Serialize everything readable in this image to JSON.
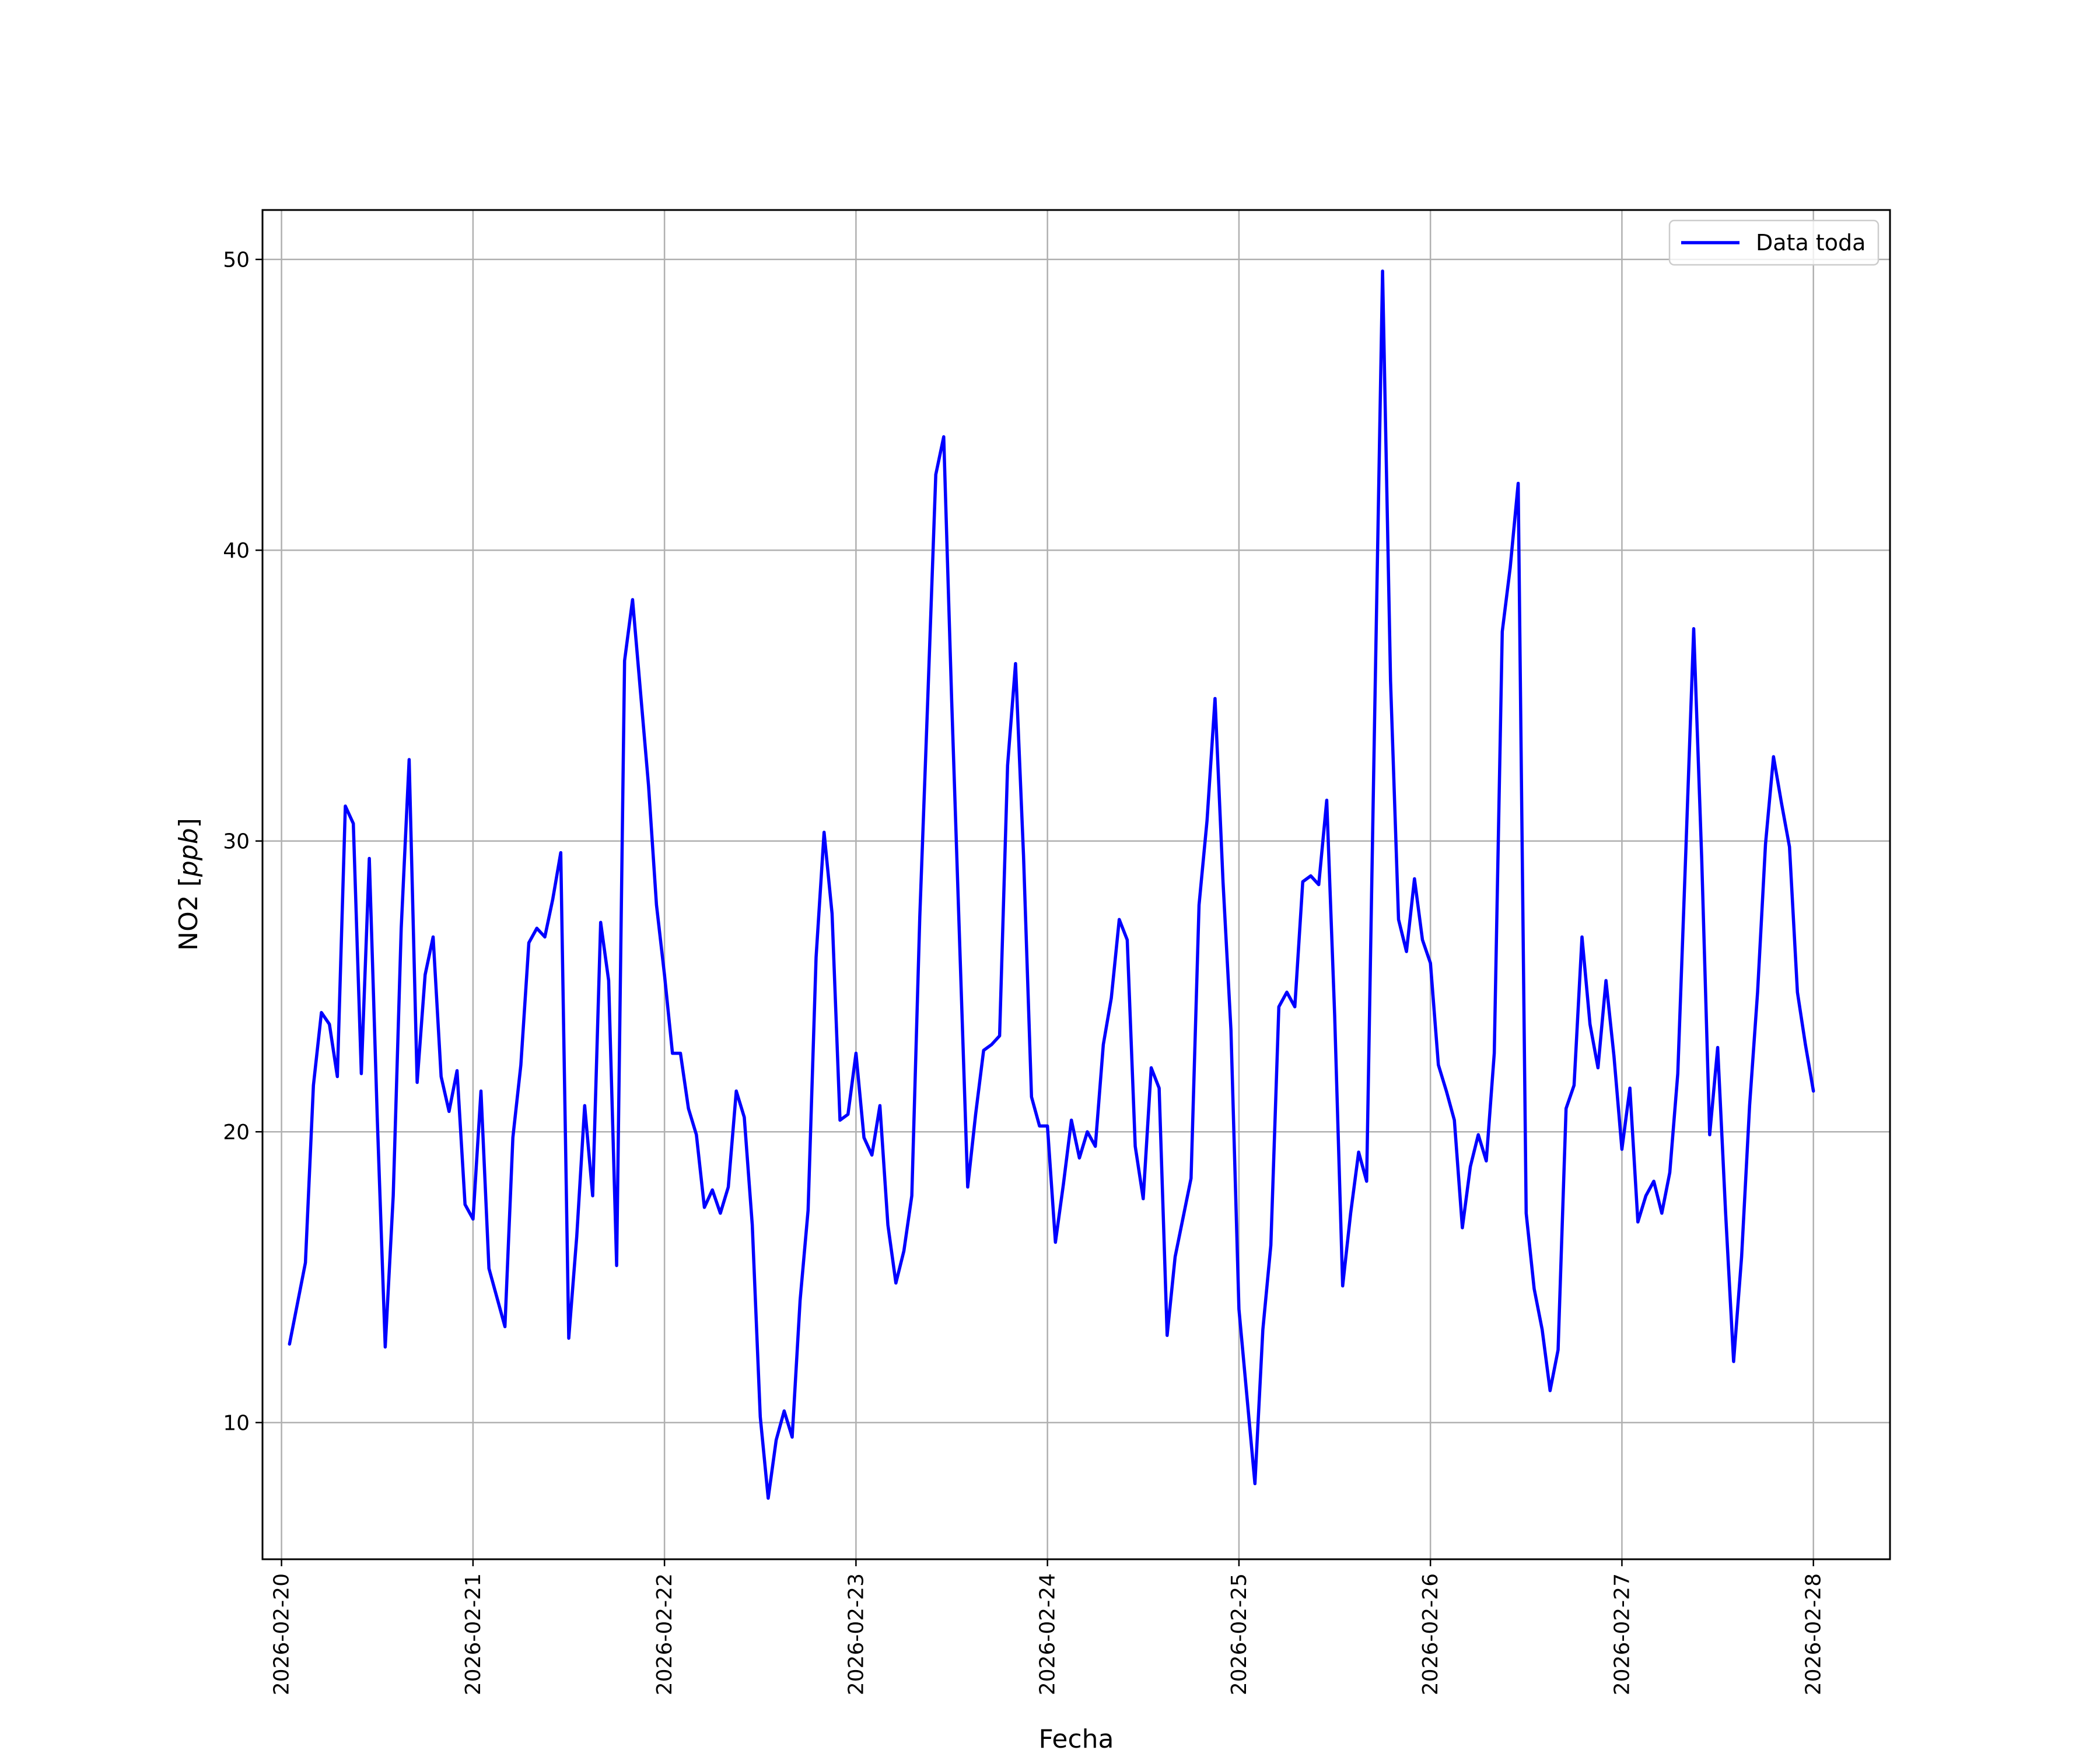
{
  "chart_data": {
    "type": "line",
    "xlabel": "Fecha",
    "ylabel_main": "NO2 [",
    "ylabel_unit": "ppb",
    "ylabel_end": "]",
    "xlim": [
      "2026-02-19T21:37:00",
      "2026-02-28T09:36:00"
    ],
    "ylim": [
      5.3,
      51.7
    ],
    "x_ticks": [
      "2026-02-20",
      "2026-02-21",
      "2026-02-22",
      "2026-02-23",
      "2026-02-24",
      "2026-02-25",
      "2026-02-26",
      "2026-02-27",
      "2026-02-28"
    ],
    "y_ticks": [
      10,
      20,
      30,
      40,
      50
    ],
    "grid": true,
    "legend_position": "top-right",
    "series": [
      {
        "name": "Data toda",
        "color": "#0000ff",
        "x": [
          "2026-02-20T01:00",
          "2026-02-20T03:00",
          "2026-02-20T04:00",
          "2026-02-20T05:00",
          "2026-02-20T06:00",
          "2026-02-20T07:00",
          "2026-02-20T08:00",
          "2026-02-20T09:00",
          "2026-02-20T10:00",
          "2026-02-20T11:00",
          "2026-02-20T12:00",
          "2026-02-20T13:00",
          "2026-02-20T14:00",
          "2026-02-20T15:00",
          "2026-02-20T16:00",
          "2026-02-20T17:00",
          "2026-02-20T18:00",
          "2026-02-20T19:00",
          "2026-02-20T20:00",
          "2026-02-20T21:00",
          "2026-02-20T22:00",
          "2026-02-20T23:00",
          "2026-02-21T00:00",
          "2026-02-21T01:00",
          "2026-02-21T02:00",
          "2026-02-21T04:00",
          "2026-02-21T05:00",
          "2026-02-21T06:00",
          "2026-02-21T07:00",
          "2026-02-21T08:00",
          "2026-02-21T09:00",
          "2026-02-21T10:00",
          "2026-02-21T11:00",
          "2026-02-21T12:00",
          "2026-02-21T13:00",
          "2026-02-21T14:00",
          "2026-02-21T15:00",
          "2026-02-21T16:00",
          "2026-02-21T17:00",
          "2026-02-21T18:00",
          "2026-02-21T19:00",
          "2026-02-21T20:00",
          "2026-02-21T21:00",
          "2026-02-21T22:00",
          "2026-02-21T23:00",
          "2026-02-22T00:00",
          "2026-02-22T01:00",
          "2026-02-22T02:00",
          "2026-02-22T03:00",
          "2026-02-22T04:00",
          "2026-02-22T05:00",
          "2026-02-22T06:00",
          "2026-02-22T07:00",
          "2026-02-22T08:00",
          "2026-02-22T09:00",
          "2026-02-22T10:00",
          "2026-02-22T11:00",
          "2026-02-22T12:00",
          "2026-02-22T13:00",
          "2026-02-22T14:00",
          "2026-02-22T15:00",
          "2026-02-22T16:00",
          "2026-02-22T17:00",
          "2026-02-22T18:00",
          "2026-02-22T19:00",
          "2026-02-22T20:00",
          "2026-02-22T21:00",
          "2026-02-22T22:00",
          "2026-02-22T23:00",
          "2026-02-23T00:00",
          "2026-02-23T01:00",
          "2026-02-23T02:00",
          "2026-02-23T03:00",
          "2026-02-23T04:00",
          "2026-02-23T05:00",
          "2026-02-23T06:00",
          "2026-02-23T07:00",
          "2026-02-23T08:00",
          "2026-02-23T09:00",
          "2026-02-23T10:00",
          "2026-02-23T11:00",
          "2026-02-23T12:00",
          "2026-02-23T14:00",
          "2026-02-23T15:00",
          "2026-02-23T16:00",
          "2026-02-23T17:00",
          "2026-02-23T18:00",
          "2026-02-23T19:00",
          "2026-02-23T20:00",
          "2026-02-23T21:00",
          "2026-02-23T22:00",
          "2026-02-23T23:00",
          "2026-02-24T00:00",
          "2026-02-24T01:00",
          "2026-02-24T02:00",
          "2026-02-24T03:00",
          "2026-02-24T04:00",
          "2026-02-24T05:00",
          "2026-02-24T06:00",
          "2026-02-24T07:00",
          "2026-02-24T08:00",
          "2026-02-24T09:00",
          "2026-02-24T10:00",
          "2026-02-24T11:00",
          "2026-02-24T12:00",
          "2026-02-24T13:00",
          "2026-02-24T14:00",
          "2026-02-24T15:00",
          "2026-02-24T16:00",
          "2026-02-24T18:00",
          "2026-02-24T19:00",
          "2026-02-24T20:00",
          "2026-02-24T21:00",
          "2026-02-24T22:00",
          "2026-02-24T23:00",
          "2026-02-25T00:00",
          "2026-02-25T02:00",
          "2026-02-25T03:00",
          "2026-02-25T04:00",
          "2026-02-25T05:00",
          "2026-02-25T06:00",
          "2026-02-25T07:00",
          "2026-02-25T08:00",
          "2026-02-25T09:00",
          "2026-02-25T10:00",
          "2026-02-25T11:00",
          "2026-02-25T12:00",
          "2026-02-25T13:00",
          "2026-02-25T14:00",
          "2026-02-25T15:00",
          "2026-02-25T16:00",
          "2026-02-25T17:00",
          "2026-02-25T18:00",
          "2026-02-25T19:00",
          "2026-02-25T20:00",
          "2026-02-25T21:00",
          "2026-02-25T22:00",
          "2026-02-25T23:00",
          "2026-02-26T00:00",
          "2026-02-26T01:00",
          "2026-02-26T02:00",
          "2026-02-26T03:00",
          "2026-02-26T04:00",
          "2026-02-26T05:00",
          "2026-02-26T06:00",
          "2026-02-26T07:00",
          "2026-02-26T08:00",
          "2026-02-26T09:00",
          "2026-02-26T10:00",
          "2026-02-26T11:00",
          "2026-02-26T12:00",
          "2026-02-26T13:00",
          "2026-02-26T14:00",
          "2026-02-26T15:00",
          "2026-02-26T16:00",
          "2026-02-26T17:00",
          "2026-02-26T18:00",
          "2026-02-26T19:00",
          "2026-02-26T20:00",
          "2026-02-26T21:00",
          "2026-02-26T22:00",
          "2026-02-26T23:00",
          "2026-02-27T00:00",
          "2026-02-27T01:00",
          "2026-02-27T02:00",
          "2026-02-27T03:00",
          "2026-02-27T04:00",
          "2026-02-27T05:00",
          "2026-02-27T06:00",
          "2026-02-27T07:00",
          "2026-02-27T08:00",
          "2026-02-27T09:00",
          "2026-02-27T10:00",
          "2026-02-27T11:00",
          "2026-02-27T12:00",
          "2026-02-27T13:00",
          "2026-02-27T14:00",
          "2026-02-27T15:00",
          "2026-02-27T16:00",
          "2026-02-27T17:00",
          "2026-02-27T18:00",
          "2026-02-27T19:00",
          "2026-02-27T20:00",
          "2026-02-27T21:00",
          "2026-02-27T22:00",
          "2026-02-27T23:00",
          "2026-02-28T00:00"
        ],
        "values": [
          12.7,
          15.5,
          21.6,
          24.1,
          23.7,
          21.9,
          31.2,
          30.6,
          22.0,
          29.4,
          20.5,
          12.6,
          17.8,
          27.0,
          32.8,
          21.7,
          25.4,
          26.7,
          21.9,
          20.7,
          22.1,
          17.5,
          17.0,
          21.4,
          15.3,
          13.3,
          19.8,
          22.3,
          26.5,
          27.0,
          26.7,
          28.0,
          29.6,
          12.9,
          16.4,
          20.9,
          17.8,
          27.2,
          25.2,
          15.4,
          36.2,
          38.3,
          35.1,
          31.9,
          27.8,
          25.4,
          22.7,
          22.7,
          20.8,
          19.9,
          17.4,
          18.0,
          17.2,
          18.1,
          21.4,
          20.5,
          16.8,
          10.2,
          7.4,
          9.4,
          10.4,
          9.5,
          14.2,
          17.3,
          26.0,
          30.3,
          27.5,
          20.4,
          20.6,
          22.7,
          19.8,
          19.2,
          20.9,
          16.8,
          14.8,
          15.9,
          17.8,
          27.4,
          34.9,
          42.6,
          43.9,
          34.8,
          18.1,
          20.6,
          22.8,
          23.0,
          23.3,
          32.6,
          36.1,
          29.5,
          21.2,
          20.2,
          20.2,
          16.2,
          18.2,
          20.4,
          19.1,
          20.0,
          19.5,
          23.0,
          24.6,
          27.3,
          26.6,
          19.5,
          17.7,
          22.2,
          21.5,
          13.0,
          15.7,
          18.4,
          27.8,
          30.7,
          34.9,
          28.6,
          23.5,
          13.9,
          7.9,
          13.2,
          16.1,
          24.3,
          24.8,
          24.3,
          28.6,
          28.8,
          28.5,
          31.4,
          24.0,
          14.7,
          17.2,
          19.3,
          18.3,
          34.1,
          49.6,
          35.5,
          27.3,
          26.2,
          28.7,
          26.6,
          25.8,
          22.3,
          21.4,
          20.4,
          16.7,
          18.8,
          19.9,
          19.0,
          22.7,
          37.2,
          39.4,
          42.3,
          17.2,
          14.6,
          13.2,
          11.1,
          12.5,
          20.8,
          21.6,
          26.7,
          23.7,
          22.2,
          25.2,
          22.6,
          19.4,
          21.5,
          16.9,
          17.8,
          18.3,
          17.2,
          18.6,
          22.0,
          29.6,
          37.3,
          29.4,
          19.9,
          22.9,
          17.2,
          12.1,
          15.7,
          20.9,
          24.8,
          29.9,
          32.9,
          31.3,
          29.8,
          24.8,
          23.0,
          21.4
        ]
      }
    ]
  }
}
